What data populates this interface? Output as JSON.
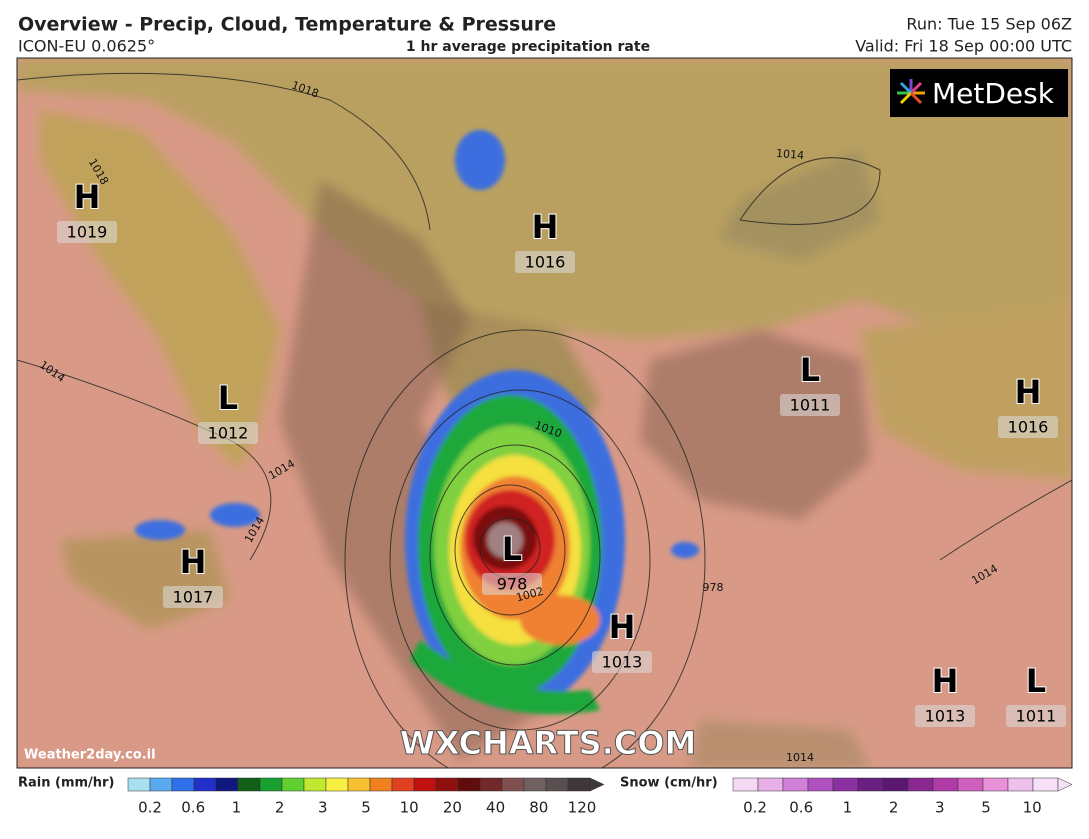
{
  "header": {
    "title": "Overview - Precip, Cloud, Temperature & Pressure",
    "model": "ICON-EU 0.0625°",
    "subtitle": "1 hr average precipitation rate",
    "run": "Run: Tue 15 Sep 06Z",
    "valid": "Valid: Fri 18 Sep 00:00 UTC"
  },
  "map": {
    "logo": "MetDesk",
    "watermark": "WXCHARTS.COM",
    "source": "Weather2day.co.il",
    "pressure_centers": [
      {
        "type": "H",
        "value": "1019"
      },
      {
        "type": "H",
        "value": "1016"
      },
      {
        "type": "L",
        "value": "1012"
      },
      {
        "type": "L",
        "value": "1011"
      },
      {
        "type": "H",
        "value": "1016"
      },
      {
        "type": "H",
        "value": "1017"
      },
      {
        "type": "L",
        "value": "978"
      },
      {
        "type": "H",
        "value": "1013"
      },
      {
        "type": "H",
        "value": "1013"
      },
      {
        "type": "L",
        "value": "1011"
      }
    ],
    "isobar_labels": [
      "1018",
      "1018",
      "1014",
      "1014",
      "1014",
      "1014",
      "1010",
      "1002",
      "978",
      "1014",
      "1014"
    ]
  },
  "legend": {
    "rain": {
      "label": "Rain (mm/hr)",
      "ticks": [
        0.2,
        0.6,
        1,
        2,
        3,
        5,
        10,
        20,
        40,
        80,
        120
      ]
    },
    "snow": {
      "label": "Snow (cm/hr)",
      "ticks": [
        0.2,
        0.6,
        1,
        2,
        3,
        5,
        10
      ]
    }
  }
}
